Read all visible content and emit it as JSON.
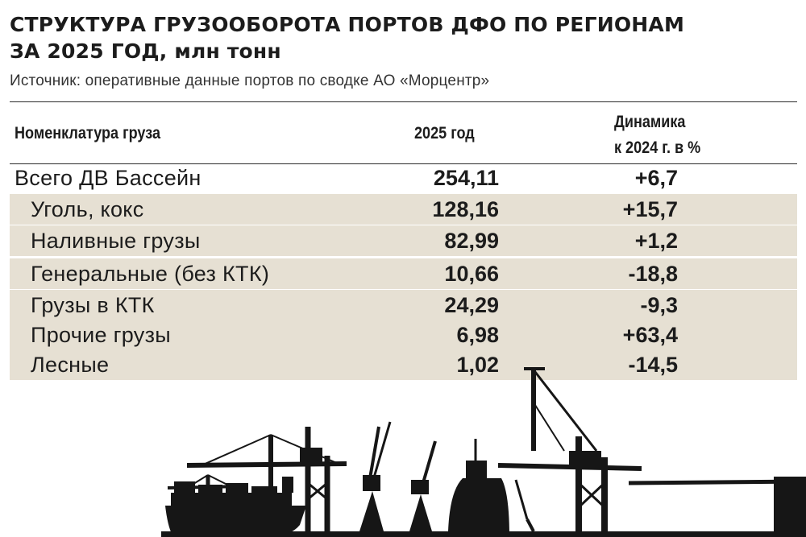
{
  "header": {
    "title_line1": "СТРУКТУРА ГРУЗООБОРОТА ПОРТОВ ДФО ПО РЕГИОНАМ",
    "title_line2": "ЗА 2025 ГОД, млн тонн",
    "source": "Источник: оперативные данные портов по сводке АО «Морцентр»"
  },
  "table": {
    "columns": {
      "name": "Номенклатура груза",
      "year": "2025 год",
      "dyn_line1": "Динамика",
      "dyn_line2": "к 2024 г. в %"
    },
    "rows": [
      {
        "name": "Всего ДВ Бассейн",
        "value": "254,11",
        "dyn": "+6,7"
      },
      {
        "name": "Уголь, кокс",
        "value": "128,16",
        "dyn": "+15,7"
      },
      {
        "name": "Наливные грузы",
        "value": "82,99",
        "dyn": "+1,2"
      },
      {
        "name": "Генеральные (без КТК)",
        "value": "10,66",
        "dyn": "-18,8"
      },
      {
        "name": "Грузы в КТК",
        "value": "24,29",
        "dyn": "-9,3"
      },
      {
        "name": "Прочие грузы",
        "value": "6,98",
        "dyn": "+63,4"
      },
      {
        "name": "Лесные",
        "value": "1,02",
        "dyn": "-14,5"
      }
    ]
  },
  "colors": {
    "shade": "#e6e0d3",
    "text": "#1c1c1c",
    "silhouette": "#161616"
  },
  "illustration": {
    "icon": "port-cranes-and-ships-silhouette"
  }
}
